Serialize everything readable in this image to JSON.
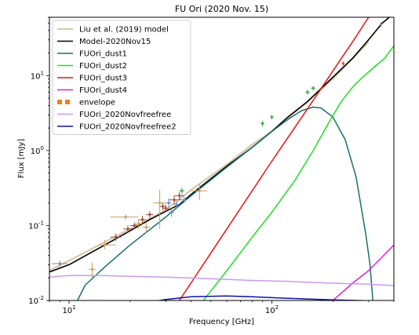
{
  "chart_data": {
    "type": "line",
    "title": "FU Ori (2020 Nov. 15)",
    "xlabel": "Frequency [GHz]",
    "ylabel": "Flux [mJy]",
    "xscale": "log",
    "yscale": "log",
    "xlim": [
      8,
      400
    ],
    "ylim": [
      0.01,
      60
    ],
    "x_ticks": [
      {
        "value": 10,
        "label": "10^1"
      },
      {
        "value": 100,
        "label": "10^2"
      }
    ],
    "y_ticks": [
      {
        "value": 0.01,
        "label": "10^-2"
      },
      {
        "value": 0.1,
        "label": "10^-1"
      },
      {
        "value": 1,
        "label": "10^0"
      },
      {
        "value": 10,
        "label": "10^1"
      }
    ],
    "legend_position": "top-left",
    "series": [
      {
        "name": "Liu et al. (2019) model",
        "color": "#d8c8a8",
        "width": 2.2,
        "style": "solid",
        "points": [
          [
            8,
            0.025
          ],
          [
            10,
            0.034
          ],
          [
            15,
            0.06
          ],
          [
            20,
            0.09
          ],
          [
            30,
            0.16
          ],
          [
            40,
            0.3
          ],
          [
            60,
            0.65
          ],
          [
            80,
            1.2
          ],
          [
            100,
            1.8
          ],
          [
            150,
            4.5
          ],
          [
            200,
            9
          ],
          [
            300,
            28
          ]
        ]
      },
      {
        "name": "Model-2020Nov15",
        "color": "#000000",
        "width": 1.6,
        "style": "solid",
        "points": [
          [
            8,
            0.024
          ],
          [
            10,
            0.03
          ],
          [
            15,
            0.055
          ],
          [
            20,
            0.085
          ],
          [
            25,
            0.12
          ],
          [
            30,
            0.155
          ],
          [
            35,
            0.19
          ],
          [
            40,
            0.26
          ],
          [
            50,
            0.42
          ],
          [
            60,
            0.62
          ],
          [
            80,
            1.1
          ],
          [
            100,
            1.8
          ],
          [
            120,
            2.8
          ],
          [
            150,
            4.5
          ],
          [
            200,
            9.5
          ],
          [
            250,
            17
          ],
          [
            300,
            30
          ],
          [
            350,
            50
          ],
          [
            380,
            60
          ]
        ]
      },
      {
        "name": "FUOri_dust1",
        "color": "#1a6e6e",
        "width": 1.5,
        "style": "solid",
        "points": [
          [
            11,
            0.01
          ],
          [
            12,
            0.016
          ],
          [
            15,
            0.028
          ],
          [
            20,
            0.055
          ],
          [
            30,
            0.13
          ],
          [
            40,
            0.25
          ],
          [
            60,
            0.6
          ],
          [
            80,
            1.1
          ],
          [
            100,
            1.8
          ],
          [
            120,
            2.6
          ],
          [
            140,
            3.4
          ],
          [
            160,
            3.8
          ],
          [
            175,
            3.7
          ],
          [
            200,
            2.8
          ],
          [
            230,
            1.4
          ],
          [
            260,
            0.45
          ],
          [
            290,
            0.08
          ],
          [
            305,
            0.03
          ],
          [
            315,
            0.01
          ]
        ]
      },
      {
        "name": "FUOri_dust2",
        "color": "#22dd22",
        "width": 1.5,
        "style": "solid",
        "points": [
          [
            46,
            0.01
          ],
          [
            60,
            0.025
          ],
          [
            80,
            0.07
          ],
          [
            100,
            0.15
          ],
          [
            130,
            0.4
          ],
          [
            160,
            1
          ],
          [
            190,
            2.3
          ],
          [
            220,
            4.5
          ],
          [
            250,
            7
          ],
          [
            280,
            9.5
          ],
          [
            320,
            13
          ],
          [
            360,
            17
          ],
          [
            400,
            25
          ]
        ]
      },
      {
        "name": "FUOri_dust3",
        "color": "#ee1111",
        "width": 1.5,
        "style": "solid",
        "points": [
          [
            35,
            0.01
          ],
          [
            60,
            0.09
          ],
          [
            100,
            0.72
          ],
          [
            150,
            3.6
          ],
          [
            200,
            11.5
          ],
          [
            260,
            33
          ],
          [
            300,
            60
          ]
        ]
      },
      {
        "name": "FUOri_dust4",
        "color": "#dd22dd",
        "width": 1.5,
        "style": "solid",
        "points": [
          [
            200,
            0.01
          ],
          [
            250,
            0.017
          ],
          [
            300,
            0.025
          ],
          [
            350,
            0.038
          ],
          [
            400,
            0.055
          ]
        ]
      },
      {
        "name": "envelope",
        "color": "#f08020",
        "width": 4,
        "style": "dotted",
        "points": []
      },
      {
        "name": "FUOri_2020Novfreefree",
        "color": "#cc99ee",
        "width": 1.5,
        "style": "solid",
        "points": [
          [
            8,
            0.0205
          ],
          [
            10,
            0.0215
          ],
          [
            15,
            0.0215
          ],
          [
            20,
            0.021
          ],
          [
            30,
            0.0205
          ],
          [
            50,
            0.0195
          ],
          [
            80,
            0.0185
          ],
          [
            120,
            0.018
          ],
          [
            200,
            0.017
          ],
          [
            300,
            0.0165
          ],
          [
            400,
            0.0158
          ]
        ]
      },
      {
        "name": "FUOri_2020Novfreefree2",
        "color": "#1010aa",
        "width": 1.5,
        "style": "solid",
        "points": [
          [
            25,
            0.0095
          ],
          [
            30,
            0.0103
          ],
          [
            40,
            0.0112
          ],
          [
            60,
            0.0115
          ],
          [
            80,
            0.0112
          ],
          [
            120,
            0.0107
          ],
          [
            200,
            0.0102
          ],
          [
            300,
            0.0099
          ],
          [
            400,
            0.0097
          ]
        ]
      }
    ],
    "observations": [
      {
        "x": 9,
        "y": 0.031,
        "xerr": [
          8.2,
          9.8
        ],
        "yerr": [
          0.028,
          0.034
        ],
        "color": "#888888"
      },
      {
        "x": 13,
        "y": 0.026,
        "xerr": [
          12.5,
          13.5
        ],
        "yerr": [
          0.02,
          0.032
        ],
        "color": "#c8a060"
      },
      {
        "x": 15,
        "y": 0.055,
        "xerr": [
          14,
          17
        ],
        "yerr": [
          0.048,
          0.064
        ],
        "color": "#c8a060"
      },
      {
        "x": 17,
        "y": 0.07,
        "xerr": [
          16,
          18
        ],
        "yerr": [
          0.062,
          0.078
        ],
        "color": "#a05040"
      },
      {
        "x": 19,
        "y": 0.13,
        "xerr": [
          16,
          22
        ],
        "yerr": [
          0.12,
          0.14
        ],
        "color": "#c8a060"
      },
      {
        "x": 19.5,
        "y": 0.09,
        "xerr": [
          18.5,
          20.5
        ],
        "yerr": [
          0.08,
          0.1
        ],
        "color": "#a05040"
      },
      {
        "x": 21,
        "y": 0.1,
        "xerr": [
          20,
          22
        ],
        "yerr": [
          0.09,
          0.11
        ],
        "color": "#a05040"
      },
      {
        "x": 22,
        "y": 0.105,
        "xerr": [
          21,
          23
        ],
        "yerr": [
          0.09,
          0.12
        ],
        "color": "#c8a060"
      },
      {
        "x": 23,
        "y": 0.12,
        "xerr": [
          22,
          24
        ],
        "yerr": [
          0.105,
          0.135
        ],
        "color": "#a05040"
      },
      {
        "x": 24,
        "y": 0.095,
        "xerr": [
          23,
          25
        ],
        "yerr": [
          0.08,
          0.11
        ],
        "color": "#c8a060"
      },
      {
        "x": 25,
        "y": 0.14,
        "xerr": [
          24,
          26
        ],
        "yerr": [
          0.125,
          0.155
        ],
        "color": "#a05040"
      },
      {
        "x": 28,
        "y": 0.2,
        "xerr": [
          26,
          30
        ],
        "yerr": [
          0.09,
          0.3
        ],
        "color": "#c8a060"
      },
      {
        "x": 29,
        "y": 0.18,
        "xerr": [
          28,
          30
        ],
        "yerr": [
          0.16,
          0.2
        ],
        "color": "#a05040"
      },
      {
        "x": 30,
        "y": 0.17,
        "xerr": [
          29,
          31
        ],
        "yerr": [
          0.15,
          0.19
        ],
        "color": "#a05040"
      },
      {
        "x": 31,
        "y": 0.2,
        "xerr": [
          30,
          32
        ],
        "yerr": [
          0.17,
          0.23
        ],
        "color": "#7090cc"
      },
      {
        "x": 32,
        "y": 0.15,
        "xerr": [
          31,
          33
        ],
        "yerr": [
          0.13,
          0.17
        ],
        "color": "#7090cc"
      },
      {
        "x": 33,
        "y": 0.22,
        "xerr": [
          31,
          36
        ],
        "yerr": [
          0.19,
          0.25
        ],
        "color": "#a05040"
      },
      {
        "x": 34,
        "y": 0.19,
        "xerr": [
          33,
          35
        ],
        "yerr": [
          0.17,
          0.21
        ],
        "color": "#7090cc"
      },
      {
        "x": 35,
        "y": 0.25,
        "xerr": [
          33,
          37
        ],
        "yerr": [
          0.22,
          0.28
        ],
        "color": "#a05040"
      },
      {
        "x": 36,
        "y": 0.29,
        "xerr": [
          35,
          37
        ],
        "yerr": [
          0.26,
          0.32
        ],
        "color": "#44aa44"
      },
      {
        "x": 37,
        "y": 0.22,
        "xerr": [
          36,
          38
        ],
        "yerr": [
          0.2,
          0.24
        ],
        "color": "#7090cc"
      },
      {
        "x": 44,
        "y": 0.29,
        "xerr": [
          40,
          48
        ],
        "yerr": [
          0.22,
          0.36
        ],
        "color": "#c8a060"
      },
      {
        "x": 90,
        "y": 2.3,
        "xerr": [
          88,
          92
        ],
        "yerr": [
          2.1,
          2.5
        ],
        "color": "#44aa44"
      },
      {
        "x": 100,
        "y": 2.8,
        "xerr": [
          98,
          102
        ],
        "yerr": [
          2.6,
          3.0
        ],
        "color": "#44aa44"
      },
      {
        "x": 150,
        "y": 6,
        "xerr": [
          146,
          154
        ],
        "yerr": [
          5.5,
          6.5
        ],
        "color": "#44aa44"
      },
      {
        "x": 160,
        "y": 6.8,
        "xerr": [
          156,
          164
        ],
        "yerr": [
          6.3,
          7.3
        ],
        "color": "#44aa44"
      },
      {
        "x": 225,
        "y": 14.5,
        "xerr": [
          222,
          228
        ],
        "yerr": [
          13.5,
          15.5
        ],
        "color": "#ee4444"
      },
      {
        "x": 345,
        "y": 48,
        "xerr": [
          340,
          350
        ],
        "yerr": [
          44,
          52
        ],
        "color": "#888888"
      }
    ]
  }
}
